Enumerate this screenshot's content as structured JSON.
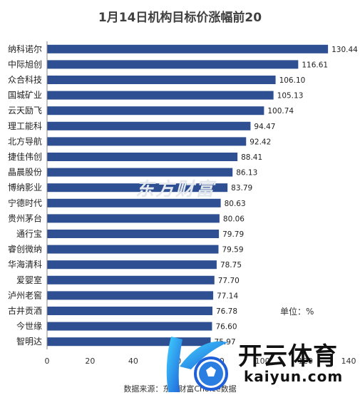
{
  "chart_data": {
    "type": "bar",
    "orientation": "horizontal",
    "title": "1月14日机构目标价涨幅前20",
    "categories": [
      "纳科诺尔",
      "中际旭创",
      "众合科技",
      "国城矿业",
      "云天励飞",
      "理工能科",
      "北方导航",
      "捷佳伟创",
      "晶晨股份",
      "博纳影业",
      "宁德时代",
      "贵州茅台",
      "通行宝",
      "睿创微纳",
      "华海清科",
      "爱婴室",
      "泸州老窖",
      "古井贡酒",
      "今世缘",
      "智明达"
    ],
    "values": [
      130.44,
      116.61,
      106.1,
      105.13,
      100.74,
      94.47,
      92.42,
      88.41,
      86.13,
      83.79,
      80.63,
      80.06,
      79.79,
      79.59,
      78.75,
      77.7,
      77.14,
      76.78,
      76.6,
      75.97
    ],
    "value_labels": [
      "130.44",
      "116.61",
      "106.10",
      "105.13",
      "100.74",
      "94.47",
      "92.42",
      "88.41",
      "86.13",
      "83.79",
      "80.63",
      "80.06",
      "79.79",
      "79.59",
      "78.75",
      "77.70",
      "77.14",
      "76.78",
      "76.60",
      "75.97"
    ],
    "xlim": [
      0,
      140
    ],
    "xticks": [
      "0",
      "20",
      "40",
      "60",
      "80",
      "100",
      "120",
      "140"
    ],
    "grid": false,
    "bar_color": "#2e4f91"
  },
  "unit_note": "单位：%",
  "source_note": "数据来源：东方财富Choice数据",
  "watermark_text": "东方财富",
  "logo": {
    "cn": "开云体育",
    "en": "kaiyun.com"
  }
}
